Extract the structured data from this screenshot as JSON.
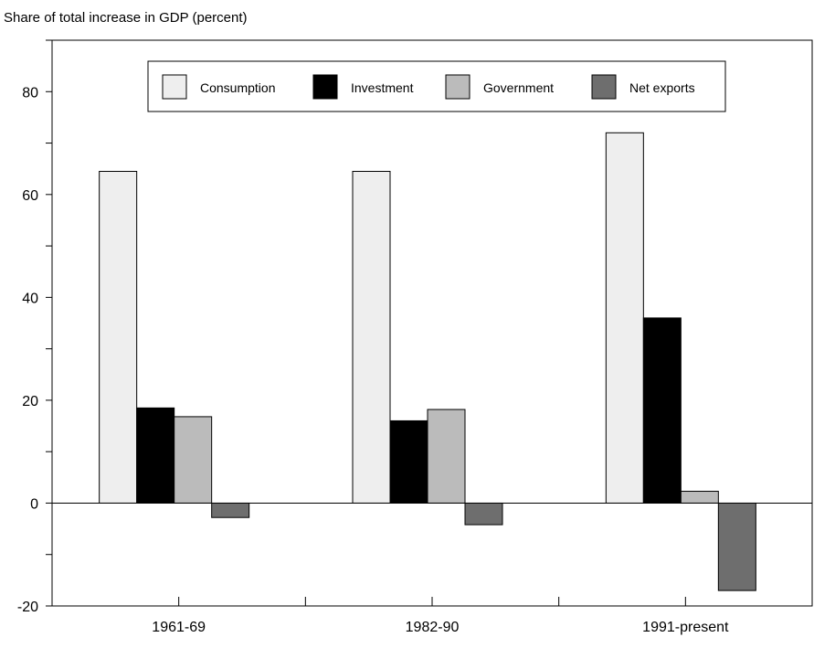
{
  "chart_data": {
    "type": "bar",
    "title": "Share of total increase in GDP (percent)",
    "xlabel": "",
    "ylabel": "",
    "categories": [
      "1961-69",
      "1982-90",
      "1991-present"
    ],
    "series": [
      {
        "name": "Consumption",
        "color": "#eeeeee",
        "values": [
          64.5,
          64.5,
          72
        ]
      },
      {
        "name": "Investment",
        "color": "#000000",
        "values": [
          18.5,
          16,
          36
        ]
      },
      {
        "name": "Government",
        "color": "#bbbbbb",
        "values": [
          16.8,
          18.2,
          2.3
        ]
      },
      {
        "name": "Net exports",
        "color": "#6e6e6e",
        "values": [
          -2.8,
          -4.2,
          -17
        ]
      }
    ],
    "y_ticks": [
      -20,
      0,
      20,
      40,
      60,
      80
    ],
    "ylim": [
      -20,
      90
    ],
    "grid": false,
    "legend_position": "top-center"
  }
}
